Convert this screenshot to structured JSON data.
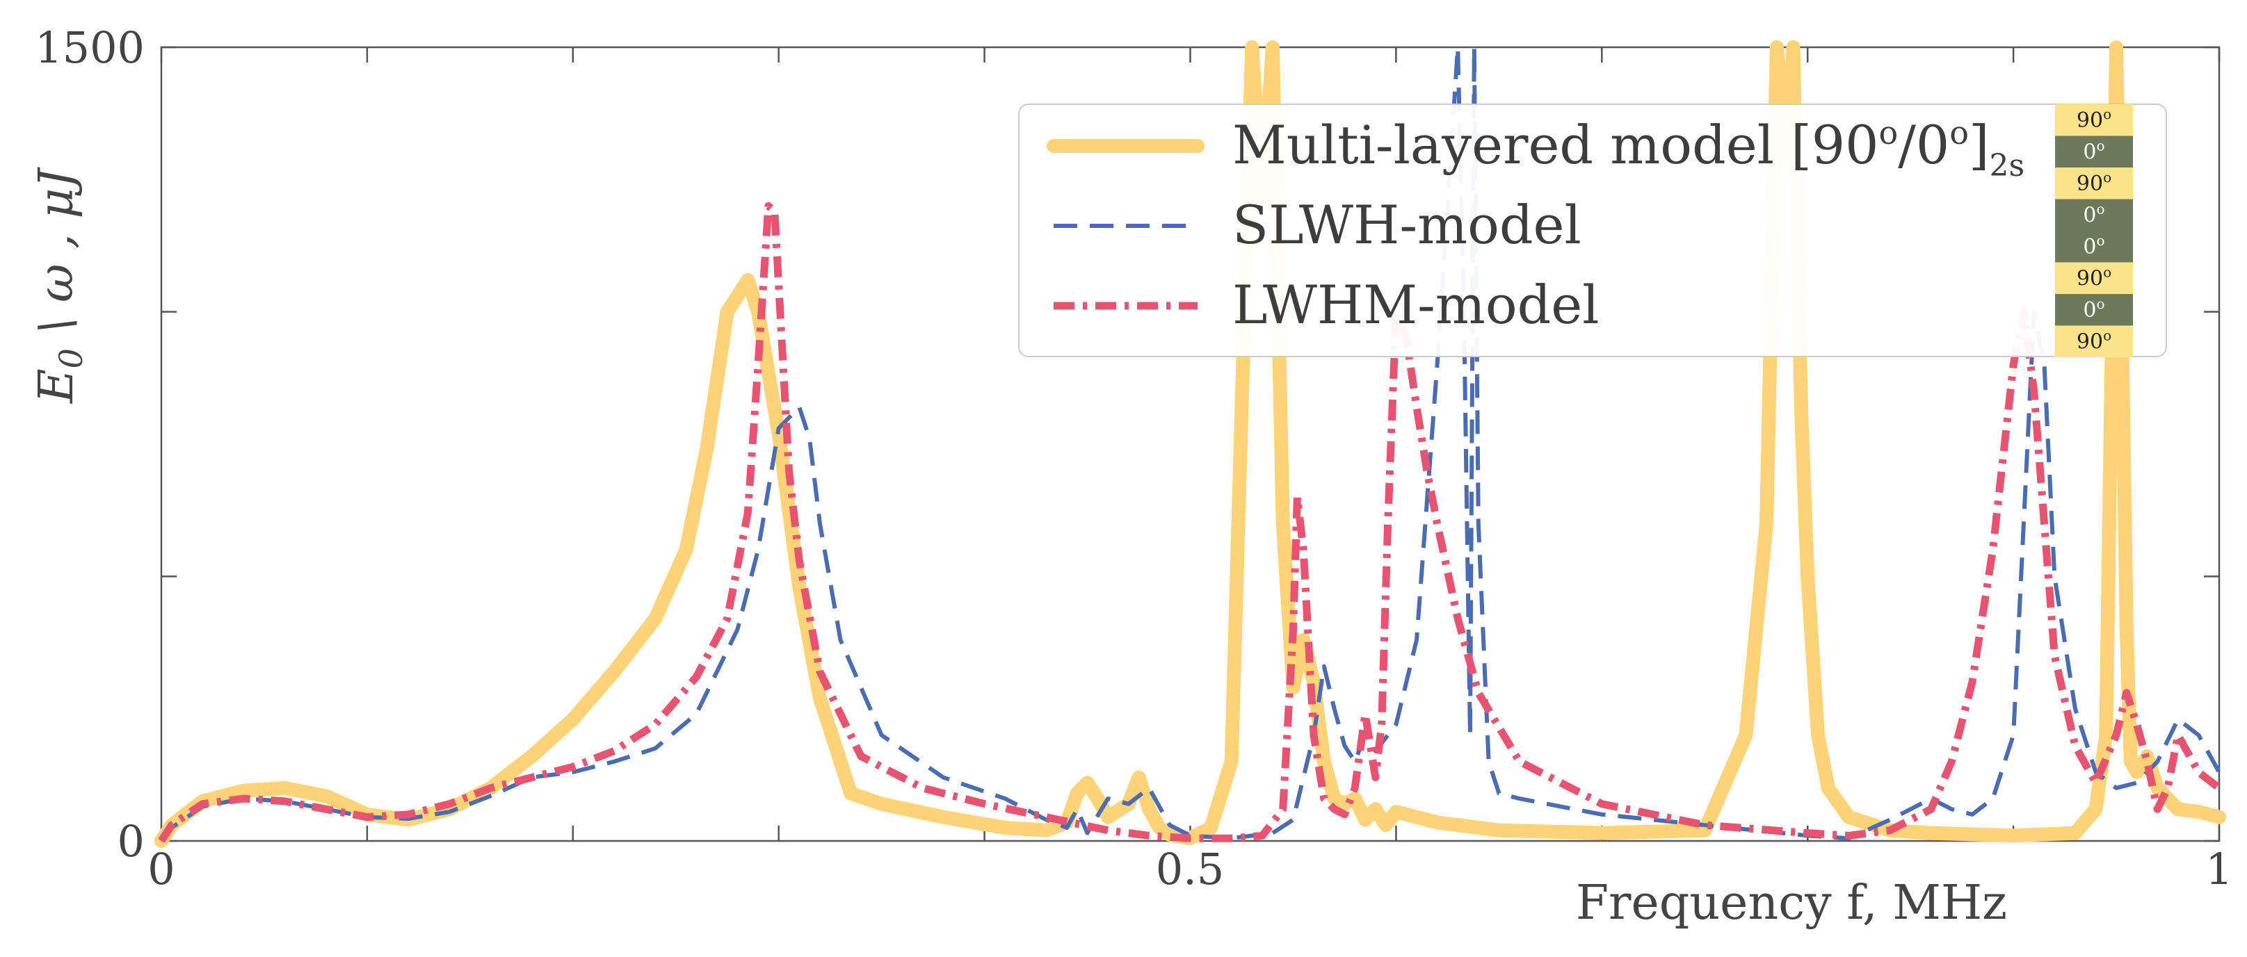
{
  "colors": {
    "multi": "#fcd376",
    "slwh": "#4a6cb5",
    "lwhm": "#e85470",
    "layer_90": "#fde48a",
    "layer_0": "#6a7a5a",
    "axis": "#555555"
  },
  "chart_data": {
    "type": "line",
    "title": "",
    "xlabel": "Frequency  f, MHz",
    "ylabel": "E0 \\ ω , μJ",
    "ylabel_parts": {
      "E": "E",
      "sub": "0",
      "rest": " \\ ω , μJ"
    },
    "xlim": [
      0,
      1
    ],
    "ylim": [
      0,
      1500
    ],
    "x_ticks": [
      0,
      0.1,
      0.2,
      0.3,
      0.4,
      0.5,
      0.6,
      0.7,
      0.8,
      0.9,
      1.0
    ],
    "x_tick_labels": [
      "0",
      "0.5",
      "1"
    ],
    "y_ticks": [
      0,
      500,
      1000,
      1500
    ],
    "y_tick_labels": [
      "0",
      "1500"
    ],
    "legend": {
      "position": "top-right",
      "entries": [
        {
          "id": "multi",
          "label_main": "Multi-layered model [90",
          "label_sup1": "o",
          "label_mid": "/0",
          "label_sup2": "o",
          "label_close": "]",
          "label_sub": "2s"
        },
        {
          "id": "slwh",
          "label": "SLWH-model"
        },
        {
          "id": "lwhm",
          "label": "LWHM-model"
        }
      ],
      "layup_inset": [
        {
          "label": "90",
          "sup": "o",
          "kind": "90"
        },
        {
          "label": "0",
          "sup": "o",
          "kind": "0"
        },
        {
          "label": "90",
          "sup": "o",
          "kind": "90"
        },
        {
          "label": "0",
          "sup": "o",
          "kind": "0"
        },
        {
          "label": "0",
          "sup": "o",
          "kind": "0"
        },
        {
          "label": "90",
          "sup": "o",
          "kind": "90"
        },
        {
          "label": "0",
          "sup": "o",
          "kind": "0"
        },
        {
          "label": "90",
          "sup": "o",
          "kind": "90"
        }
      ]
    },
    "series": [
      {
        "name": "Multi-layered model [90°/0°]2s",
        "style": "solid",
        "x": [
          0,
          0.005,
          0.02,
          0.04,
          0.06,
          0.08,
          0.1,
          0.12,
          0.14,
          0.16,
          0.18,
          0.2,
          0.22,
          0.24,
          0.255,
          0.265,
          0.275,
          0.285,
          0.29,
          0.3,
          0.31,
          0.32,
          0.335,
          0.35,
          0.38,
          0.41,
          0.43,
          0.44,
          0.445,
          0.45,
          0.455,
          0.46,
          0.47,
          0.475,
          0.48,
          0.485,
          0.49,
          0.5,
          0.51,
          0.52,
          0.53,
          0.535,
          0.54,
          0.545,
          0.55,
          0.555,
          0.56,
          0.565,
          0.57,
          0.575,
          0.58,
          0.585,
          0.59,
          0.595,
          0.6,
          0.61,
          0.615,
          0.62,
          0.63,
          0.65,
          0.7,
          0.75,
          0.77,
          0.78,
          0.785,
          0.79,
          0.793,
          0.797,
          0.8,
          0.805,
          0.81,
          0.82,
          0.84,
          0.86,
          0.9,
          0.93,
          0.94,
          0.945,
          0.95,
          0.953,
          0.955,
          0.957,
          0.96,
          0.965,
          0.97,
          0.98,
          0.99,
          1.0
        ],
        "y": [
          0,
          30,
          75,
          95,
          100,
          85,
          50,
          40,
          60,
          100,
          160,
          230,
          320,
          420,
          550,
          740,
          1000,
          1060,
          1000,
          770,
          480,
          270,
          90,
          70,
          45,
          25,
          20,
          35,
          90,
          110,
          80,
          45,
          70,
          120,
          60,
          25,
          12,
          5,
          25,
          150,
          1500,
          1200,
          1500,
          600,
          290,
          380,
          300,
          150,
          80,
          70,
          80,
          40,
          60,
          30,
          55,
          45,
          40,
          35,
          30,
          20,
          15,
          20,
          200,
          600,
          1500,
          1300,
          1500,
          800,
          500,
          200,
          100,
          45,
          20,
          15,
          10,
          15,
          60,
          200,
          1500,
          900,
          400,
          150,
          130,
          160,
          100,
          60,
          55,
          45
        ]
      },
      {
        "name": "SLWH-model",
        "style": "dashed",
        "x": [
          0,
          0.005,
          0.02,
          0.04,
          0.06,
          0.08,
          0.1,
          0.12,
          0.14,
          0.16,
          0.18,
          0.2,
          0.22,
          0.24,
          0.26,
          0.28,
          0.29,
          0.3,
          0.31,
          0.315,
          0.32,
          0.33,
          0.35,
          0.38,
          0.41,
          0.43,
          0.44,
          0.445,
          0.45,
          0.46,
          0.47,
          0.48,
          0.49,
          0.5,
          0.52,
          0.54,
          0.55,
          0.56,
          0.565,
          0.57,
          0.575,
          0.58,
          0.585,
          0.59,
          0.6,
          0.61,
          0.62,
          0.63,
          0.633,
          0.636,
          0.638,
          0.64,
          0.645,
          0.65,
          0.66,
          0.7,
          0.75,
          0.8,
          0.82,
          0.84,
          0.86,
          0.87,
          0.88,
          0.89,
          0.9,
          0.905,
          0.91,
          0.915,
          0.92,
          0.93,
          0.94,
          0.95,
          0.96,
          0.97,
          0.98,
          0.99,
          1.0
        ],
        "y": [
          0,
          25,
          65,
          80,
          75,
          60,
          45,
          42,
          55,
          85,
          120,
          130,
          150,
          175,
          240,
          400,
          550,
          780,
          820,
          760,
          600,
          380,
          200,
          120,
          80,
          40,
          25,
          60,
          15,
          80,
          70,
          100,
          30,
          10,
          5,
          15,
          40,
          200,
          330,
          250,
          180,
          150,
          200,
          170,
          220,
          380,
          900,
          1500,
          1000,
          200,
          1500,
          600,
          150,
          90,
          80,
          50,
          30,
          10,
          5,
          40,
          80,
          60,
          50,
          80,
          200,
          600,
          1000,
          900,
          500,
          250,
          130,
          100,
          110,
          150,
          230,
          200,
          130
        ]
      },
      {
        "name": "LWHM-model",
        "style": "dashdot",
        "x": [
          0,
          0.005,
          0.02,
          0.04,
          0.06,
          0.08,
          0.1,
          0.12,
          0.14,
          0.16,
          0.18,
          0.2,
          0.22,
          0.24,
          0.26,
          0.275,
          0.285,
          0.29,
          0.295,
          0.298,
          0.3,
          0.305,
          0.31,
          0.32,
          0.34,
          0.37,
          0.4,
          0.43,
          0.46,
          0.48,
          0.5,
          0.52,
          0.535,
          0.545,
          0.55,
          0.552,
          0.555,
          0.56,
          0.565,
          0.57,
          0.575,
          0.58,
          0.585,
          0.59,
          0.593,
          0.596,
          0.6,
          0.605,
          0.61,
          0.615,
          0.62,
          0.63,
          0.64,
          0.66,
          0.7,
          0.75,
          0.8,
          0.82,
          0.84,
          0.86,
          0.87,
          0.88,
          0.89,
          0.9,
          0.905,
          0.91,
          0.915,
          0.92,
          0.93,
          0.94,
          0.95,
          0.955,
          0.96,
          0.965,
          0.97,
          0.975,
          0.98,
          0.99,
          1.0
        ],
        "y": [
          0,
          30,
          70,
          80,
          75,
          60,
          45,
          50,
          70,
          100,
          120,
          140,
          170,
          220,
          310,
          420,
          620,
          900,
          1200,
          1190,
          1050,
          700,
          530,
          320,
          160,
          100,
          70,
          45,
          20,
          10,
          5,
          5,
          10,
          60,
          400,
          650,
          550,
          200,
          80,
          60,
          50,
          100,
          240,
          120,
          220,
          600,
          1000,
          950,
          820,
          700,
          600,
          420,
          280,
          150,
          70,
          30,
          15,
          10,
          20,
          60,
          150,
          300,
          550,
          900,
          1000,
          850,
          600,
          350,
          180,
          110,
          200,
          280,
          220,
          150,
          60,
          100,
          200,
          130,
          100
        ]
      }
    ]
  }
}
